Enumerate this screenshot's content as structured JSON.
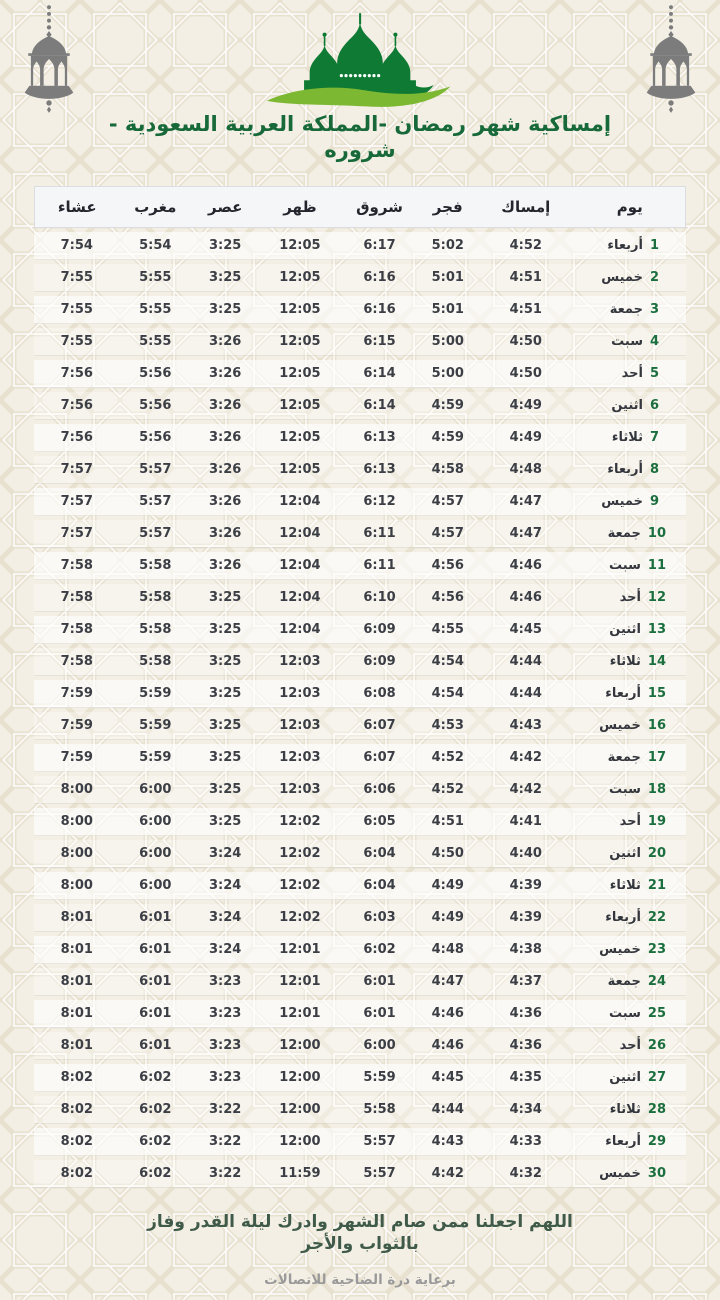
{
  "header": {
    "title": "إمساكية شهر رمضان -المملكة العربية السعودية - شروره",
    "icons": [
      "crescent-icon",
      "mosque-icon",
      "lantern-icon",
      "lantern-icon"
    ]
  },
  "colors": {
    "title_green": "#17693a",
    "mosque_green": "#0e7a33",
    "swoosh_green": "#7cb832",
    "lantern_gray": "#7c7c7c",
    "day_number_green": "#1b6e3d",
    "dua_green": "#3f5a49",
    "sponsor_gray": "#9a9a9a"
  },
  "table": {
    "columns": [
      {
        "key": "day",
        "label": "يوم"
      },
      {
        "key": "imsak",
        "label": "إمساك"
      },
      {
        "key": "fajr",
        "label": "فجر"
      },
      {
        "key": "shuruq",
        "label": "شروق"
      },
      {
        "key": "dhuhr",
        "label": "ظهر"
      },
      {
        "key": "asr",
        "label": "عصر"
      },
      {
        "key": "maghrib",
        "label": "مغرب"
      },
      {
        "key": "isha",
        "label": "عشاء"
      }
    ],
    "rows": [
      {
        "day": "1",
        "name": "أربعاء",
        "imsak": "4:52",
        "fajr": "5:02",
        "shuruq": "6:17",
        "dhuhr": "12:05",
        "asr": "3:25",
        "maghrib": "5:54",
        "isha": "7:54"
      },
      {
        "day": "2",
        "name": "خميس",
        "imsak": "4:51",
        "fajr": "5:01",
        "shuruq": "6:16",
        "dhuhr": "12:05",
        "asr": "3:25",
        "maghrib": "5:55",
        "isha": "7:55"
      },
      {
        "day": "3",
        "name": "جمعة",
        "imsak": "4:51",
        "fajr": "5:01",
        "shuruq": "6:16",
        "dhuhr": "12:05",
        "asr": "3:25",
        "maghrib": "5:55",
        "isha": "7:55"
      },
      {
        "day": "4",
        "name": "سبت",
        "imsak": "4:50",
        "fajr": "5:00",
        "shuruq": "6:15",
        "dhuhr": "12:05",
        "asr": "3:26",
        "maghrib": "5:55",
        "isha": "7:55"
      },
      {
        "day": "5",
        "name": "أحد",
        "imsak": "4:50",
        "fajr": "5:00",
        "shuruq": "6:14",
        "dhuhr": "12:05",
        "asr": "3:26",
        "maghrib": "5:56",
        "isha": "7:56"
      },
      {
        "day": "6",
        "name": "اثنين",
        "imsak": "4:49",
        "fajr": "4:59",
        "shuruq": "6:14",
        "dhuhr": "12:05",
        "asr": "3:26",
        "maghrib": "5:56",
        "isha": "7:56"
      },
      {
        "day": "7",
        "name": "ثلاثاء",
        "imsak": "4:49",
        "fajr": "4:59",
        "shuruq": "6:13",
        "dhuhr": "12:05",
        "asr": "3:26",
        "maghrib": "5:56",
        "isha": "7:56"
      },
      {
        "day": "8",
        "name": "أربعاء",
        "imsak": "4:48",
        "fajr": "4:58",
        "shuruq": "6:13",
        "dhuhr": "12:05",
        "asr": "3:26",
        "maghrib": "5:57",
        "isha": "7:57"
      },
      {
        "day": "9",
        "name": "خميس",
        "imsak": "4:47",
        "fajr": "4:57",
        "shuruq": "6:12",
        "dhuhr": "12:04",
        "asr": "3:26",
        "maghrib": "5:57",
        "isha": "7:57"
      },
      {
        "day": "10",
        "name": "جمعة",
        "imsak": "4:47",
        "fajr": "4:57",
        "shuruq": "6:11",
        "dhuhr": "12:04",
        "asr": "3:26",
        "maghrib": "5:57",
        "isha": "7:57"
      },
      {
        "day": "11",
        "name": "سبت",
        "imsak": "4:46",
        "fajr": "4:56",
        "shuruq": "6:11",
        "dhuhr": "12:04",
        "asr": "3:26",
        "maghrib": "5:58",
        "isha": "7:58"
      },
      {
        "day": "12",
        "name": "أحد",
        "imsak": "4:46",
        "fajr": "4:56",
        "shuruq": "6:10",
        "dhuhr": "12:04",
        "asr": "3:25",
        "maghrib": "5:58",
        "isha": "7:58"
      },
      {
        "day": "13",
        "name": "اثنين",
        "imsak": "4:45",
        "fajr": "4:55",
        "shuruq": "6:09",
        "dhuhr": "12:04",
        "asr": "3:25",
        "maghrib": "5:58",
        "isha": "7:58"
      },
      {
        "day": "14",
        "name": "ثلاثاء",
        "imsak": "4:44",
        "fajr": "4:54",
        "shuruq": "6:09",
        "dhuhr": "12:03",
        "asr": "3:25",
        "maghrib": "5:58",
        "isha": "7:58"
      },
      {
        "day": "15",
        "name": "أربعاء",
        "imsak": "4:44",
        "fajr": "4:54",
        "shuruq": "6:08",
        "dhuhr": "12:03",
        "asr": "3:25",
        "maghrib": "5:59",
        "isha": "7:59"
      },
      {
        "day": "16",
        "name": "خميس",
        "imsak": "4:43",
        "fajr": "4:53",
        "shuruq": "6:07",
        "dhuhr": "12:03",
        "asr": "3:25",
        "maghrib": "5:59",
        "isha": "7:59"
      },
      {
        "day": "17",
        "name": "جمعة",
        "imsak": "4:42",
        "fajr": "4:52",
        "shuruq": "6:07",
        "dhuhr": "12:03",
        "asr": "3:25",
        "maghrib": "5:59",
        "isha": "7:59"
      },
      {
        "day": "18",
        "name": "سبت",
        "imsak": "4:42",
        "fajr": "4:52",
        "shuruq": "6:06",
        "dhuhr": "12:03",
        "asr": "3:25",
        "maghrib": "6:00",
        "isha": "8:00"
      },
      {
        "day": "19",
        "name": "أحد",
        "imsak": "4:41",
        "fajr": "4:51",
        "shuruq": "6:05",
        "dhuhr": "12:02",
        "asr": "3:25",
        "maghrib": "6:00",
        "isha": "8:00"
      },
      {
        "day": "20",
        "name": "اثنين",
        "imsak": "4:40",
        "fajr": "4:50",
        "shuruq": "6:04",
        "dhuhr": "12:02",
        "asr": "3:24",
        "maghrib": "6:00",
        "isha": "8:00"
      },
      {
        "day": "21",
        "name": "ثلاثاء",
        "imsak": "4:39",
        "fajr": "4:49",
        "shuruq": "6:04",
        "dhuhr": "12:02",
        "asr": "3:24",
        "maghrib": "6:00",
        "isha": "8:00"
      },
      {
        "day": "22",
        "name": "أربعاء",
        "imsak": "4:39",
        "fajr": "4:49",
        "shuruq": "6:03",
        "dhuhr": "12:02",
        "asr": "3:24",
        "maghrib": "6:01",
        "isha": "8:01"
      },
      {
        "day": "23",
        "name": "خميس",
        "imsak": "4:38",
        "fajr": "4:48",
        "shuruq": "6:02",
        "dhuhr": "12:01",
        "asr": "3:24",
        "maghrib": "6:01",
        "isha": "8:01"
      },
      {
        "day": "24",
        "name": "جمعة",
        "imsak": "4:37",
        "fajr": "4:47",
        "shuruq": "6:01",
        "dhuhr": "12:01",
        "asr": "3:23",
        "maghrib": "6:01",
        "isha": "8:01"
      },
      {
        "day": "25",
        "name": "سبت",
        "imsak": "4:36",
        "fajr": "4:46",
        "shuruq": "6:01",
        "dhuhr": "12:01",
        "asr": "3:23",
        "maghrib": "6:01",
        "isha": "8:01"
      },
      {
        "day": "26",
        "name": "أحد",
        "imsak": "4:36",
        "fajr": "4:46",
        "shuruq": "6:00",
        "dhuhr": "12:00",
        "asr": "3:23",
        "maghrib": "6:01",
        "isha": "8:01"
      },
      {
        "day": "27",
        "name": "اثنين",
        "imsak": "4:35",
        "fajr": "4:45",
        "shuruq": "5:59",
        "dhuhr": "12:00",
        "asr": "3:23",
        "maghrib": "6:02",
        "isha": "8:02"
      },
      {
        "day": "28",
        "name": "ثلاثاء",
        "imsak": "4:34",
        "fajr": "4:44",
        "shuruq": "5:58",
        "dhuhr": "12:00",
        "asr": "3:22",
        "maghrib": "6:02",
        "isha": "8:02"
      },
      {
        "day": "29",
        "name": "أربعاء",
        "imsak": "4:33",
        "fajr": "4:43",
        "shuruq": "5:57",
        "dhuhr": "12:00",
        "asr": "3:22",
        "maghrib": "6:02",
        "isha": "8:02"
      },
      {
        "day": "30",
        "name": "خميس",
        "imsak": "4:32",
        "fajr": "4:42",
        "shuruq": "5:57",
        "dhuhr": "11:59",
        "asr": "3:22",
        "maghrib": "6:02",
        "isha": "8:02"
      }
    ]
  },
  "footer": {
    "dua": "اللهم اجعلنا ممن صام الشهر وادرك ليلة القدر وفاز بالثواب والأجر",
    "sponsor": "برعاية درة الضاحية للاتصالات"
  }
}
